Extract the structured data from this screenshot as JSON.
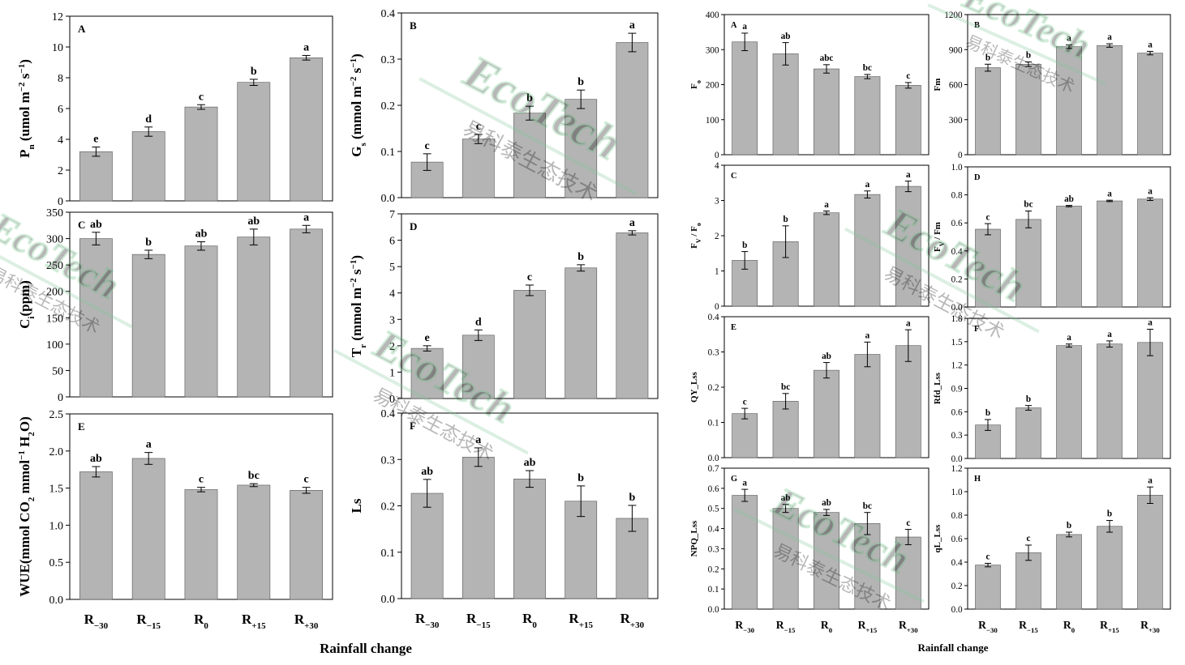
{
  "figure": {
    "x_title": "Rainfall change",
    "categories": [
      "R-30",
      "R-15",
      "R0",
      "R+15",
      "R+30"
    ],
    "category_main": "R",
    "category_subs": [
      "−30",
      "−15",
      "0",
      "+15",
      "+30"
    ],
    "bar_color": "#b4b4b4",
    "watermark_logo": "EcoTech",
    "watermark_cn": "易科泰生态技术"
  },
  "chart_data": [
    {
      "type": "bar",
      "panel": "A",
      "ylabel": "Pn (umol m-2 s-1)",
      "ylabel_main": "P",
      "ylabel_sub": "n",
      "ylabel_rest": " (umol m",
      "ylabel_sup1": "−2",
      "ylabel_mid": " s",
      "ylabel_sup2": "−1",
      "ylabel_end": ")",
      "ylim": [
        0,
        12
      ],
      "yticks": [
        "0",
        "2",
        "4",
        "6",
        "8",
        "10",
        "12"
      ],
      "values": [
        3.2,
        4.5,
        6.1,
        7.7,
        9.3
      ],
      "errors": [
        0.3,
        0.3,
        0.15,
        0.2,
        0.15
      ],
      "letters": [
        "e",
        "d",
        "c",
        "b",
        "a"
      ]
    },
    {
      "type": "bar",
      "panel": "B",
      "ylabel": "Gs (mmol m-2 s-1)",
      "ylabel_main": "G",
      "ylabel_sub": "s",
      "ylabel_rest": " (mmol m",
      "ylabel_sup1": "−2",
      "ylabel_mid": " s",
      "ylabel_sup2": "−1",
      "ylabel_end": ")",
      "ylim": [
        0,
        0.4
      ],
      "yticks": [
        "0.0",
        "0.1",
        "0.2",
        "0.3",
        "0.4"
      ],
      "values": [
        0.077,
        0.127,
        0.183,
        0.213,
        0.336
      ],
      "errors": [
        0.018,
        0.01,
        0.015,
        0.02,
        0.02
      ],
      "letters": [
        "c",
        "c",
        "b",
        "b",
        "a"
      ]
    },
    {
      "type": "bar",
      "panel": "C",
      "ylabel": "Ci(ppm)",
      "ylabel_main": "C",
      "ylabel_sub": "i",
      "ylabel_rest": "(ppm)",
      "ylim": [
        0,
        350
      ],
      "yticks": [
        "0",
        "50",
        "100",
        "150",
        "200",
        "250",
        "300",
        "350"
      ],
      "values": [
        300,
        270,
        286,
        303,
        318
      ],
      "errors": [
        12,
        8,
        8,
        15,
        7
      ],
      "letters": [
        "ab",
        "b",
        "ab",
        "ab",
        "a"
      ]
    },
    {
      "type": "bar",
      "panel": "D",
      "ylabel": "Tr (mmol m-2 s-1)",
      "ylabel_main": "T",
      "ylabel_sub": "r",
      "ylabel_rest": " (mmol m",
      "ylabel_sup1": "−2",
      "ylabel_mid": " s",
      "ylabel_sup2": "−1",
      "ylabel_end": ")",
      "ylim": [
        0,
        7
      ],
      "yticks": [
        "0",
        "1",
        "2",
        "3",
        "4",
        "5",
        "6",
        "7"
      ],
      "values": [
        1.9,
        2.4,
        4.1,
        4.95,
        6.28
      ],
      "errors": [
        0.1,
        0.2,
        0.2,
        0.12,
        0.08
      ],
      "letters": [
        "e",
        "d",
        "c",
        "b",
        "a"
      ]
    },
    {
      "type": "bar",
      "panel": "E",
      "ylabel": "WUE(mmol CO2 mmol-1 H2O)",
      "ylabel_main": "WUE(mmol CO",
      "ylabel_sub": "2",
      "ylabel_rest": " mmol",
      "ylabel_sup1": "−1",
      "ylabel_mid": " H",
      "ylabel_sub2": "2",
      "ylabel_end": "O)",
      "ylim": [
        0,
        2.5
      ],
      "yticks": [
        "0.0",
        "0.5",
        "1.0",
        "1.5",
        "2.0",
        "2.5"
      ],
      "values": [
        1.72,
        1.9,
        1.48,
        1.54,
        1.47
      ],
      "errors": [
        0.07,
        0.08,
        0.03,
        0.02,
        0.04
      ],
      "letters": [
        "ab",
        "a",
        "c",
        "bc",
        "c"
      ]
    },
    {
      "type": "bar",
      "panel": "F",
      "ylabel": "Ls",
      "ylim": [
        0,
        0.4
      ],
      "yticks": [
        "0.0",
        "0.1",
        "0.2",
        "0.3",
        "0.4"
      ],
      "values": [
        0.227,
        0.305,
        0.258,
        0.21,
        0.173
      ],
      "errors": [
        0.03,
        0.02,
        0.018,
        0.033,
        0.028
      ],
      "letters": [
        "ab",
        "a",
        "ab",
        "b",
        "b"
      ]
    },
    {
      "type": "bar",
      "panel": "A",
      "ylabel": "Fo",
      "ylabel_main": "F",
      "ylabel_sub": "o",
      "ylim": [
        0,
        400
      ],
      "yticks": [
        "0",
        "100",
        "200",
        "300",
        "400"
      ],
      "values": [
        322,
        288,
        245,
        223,
        198
      ],
      "errors": [
        25,
        32,
        12,
        6,
        8
      ],
      "letters": [
        "a",
        "ab",
        "abc",
        "bc",
        "c"
      ]
    },
    {
      "type": "bar",
      "panel": "B",
      "ylabel": "Fm",
      "ylim": [
        0,
        1200
      ],
      "yticks": [
        "0",
        "300",
        "600",
        "900",
        "1200"
      ],
      "values": [
        745,
        775,
        925,
        935,
        870
      ],
      "errors": [
        30,
        20,
        15,
        15,
        15
      ],
      "letters": [
        "b",
        "b",
        "a",
        "a",
        "a"
      ]
    },
    {
      "type": "bar",
      "panel": "C",
      "ylabel": "Fv / Fo",
      "ylabel_main": "F",
      "ylabel_sub": "V",
      "ylabel_rest": " / F",
      "ylabel_sub2": "o",
      "ylim": [
        0,
        4
      ],
      "yticks": [
        "0",
        "1",
        "2",
        "3",
        "4"
      ],
      "values": [
        1.3,
        1.83,
        2.65,
        3.17,
        3.4
      ],
      "errors": [
        0.25,
        0.45,
        0.05,
        0.1,
        0.15
      ],
      "letters": [
        "b",
        "b",
        "a",
        "a",
        "a"
      ]
    },
    {
      "type": "bar",
      "panel": "D",
      "ylabel": "Fv / Fm",
      "ylabel_main": "F",
      "ylabel_sub": "V",
      "ylabel_rest": " / Fm",
      "ylim": [
        0,
        1.0
      ],
      "yticks": [
        "0.0",
        "0.2",
        "0.4",
        "0.6",
        "0.8",
        "1.0"
      ],
      "values": [
        0.555,
        0.625,
        0.72,
        0.757,
        0.77
      ],
      "errors": [
        0.04,
        0.06,
        0.005,
        0.005,
        0.01
      ],
      "letters": [
        "c",
        "bc",
        "ab",
        "a",
        "a"
      ]
    },
    {
      "type": "bar",
      "panel": "E",
      "ylabel": "QY_Lss",
      "ylim": [
        0,
        0.4
      ],
      "yticks": [
        "0.0",
        "0.1",
        "0.2",
        "0.3",
        "0.4"
      ],
      "values": [
        0.125,
        0.16,
        0.248,
        0.293,
        0.318
      ],
      "errors": [
        0.015,
        0.022,
        0.022,
        0.035,
        0.045
      ],
      "letters": [
        "c",
        "bc",
        "ab",
        "a",
        "a"
      ]
    },
    {
      "type": "bar",
      "panel": "F",
      "ylabel": "Rfd_Lss",
      "ylim": [
        0,
        1.8
      ],
      "yticks": [
        "0.0",
        "0.3",
        "0.6",
        "0.9",
        "1.2",
        "1.5",
        "1.8"
      ],
      "values": [
        0.43,
        0.65,
        1.45,
        1.47,
        1.49
      ],
      "errors": [
        0.07,
        0.03,
        0.02,
        0.04,
        0.17
      ],
      "letters": [
        "b",
        "b",
        "a",
        "a",
        "a"
      ]
    },
    {
      "type": "bar",
      "panel": "G",
      "ylabel": "NPQ_Lss",
      "ylim": [
        0,
        0.7
      ],
      "yticks": [
        "0.0",
        "0.1",
        "0.2",
        "0.3",
        "0.4",
        "0.5",
        "0.6",
        "0.7"
      ],
      "values": [
        0.565,
        0.5,
        0.48,
        0.425,
        0.358
      ],
      "errors": [
        0.03,
        0.02,
        0.015,
        0.055,
        0.038
      ],
      "letters": [
        "a",
        "ab",
        "ab",
        "bc",
        "c"
      ]
    },
    {
      "type": "bar",
      "panel": "H",
      "ylabel": "qL_Lss",
      "ylim": [
        0,
        1.2
      ],
      "yticks": [
        "0.0",
        "0.2",
        "0.4",
        "0.6",
        "0.8",
        "1.0",
        "1.2"
      ],
      "values": [
        0.375,
        0.48,
        0.635,
        0.705,
        0.97
      ],
      "errors": [
        0.015,
        0.065,
        0.02,
        0.05,
        0.07
      ],
      "letters": [
        "c",
        "c",
        "b",
        "b",
        "a"
      ]
    }
  ]
}
